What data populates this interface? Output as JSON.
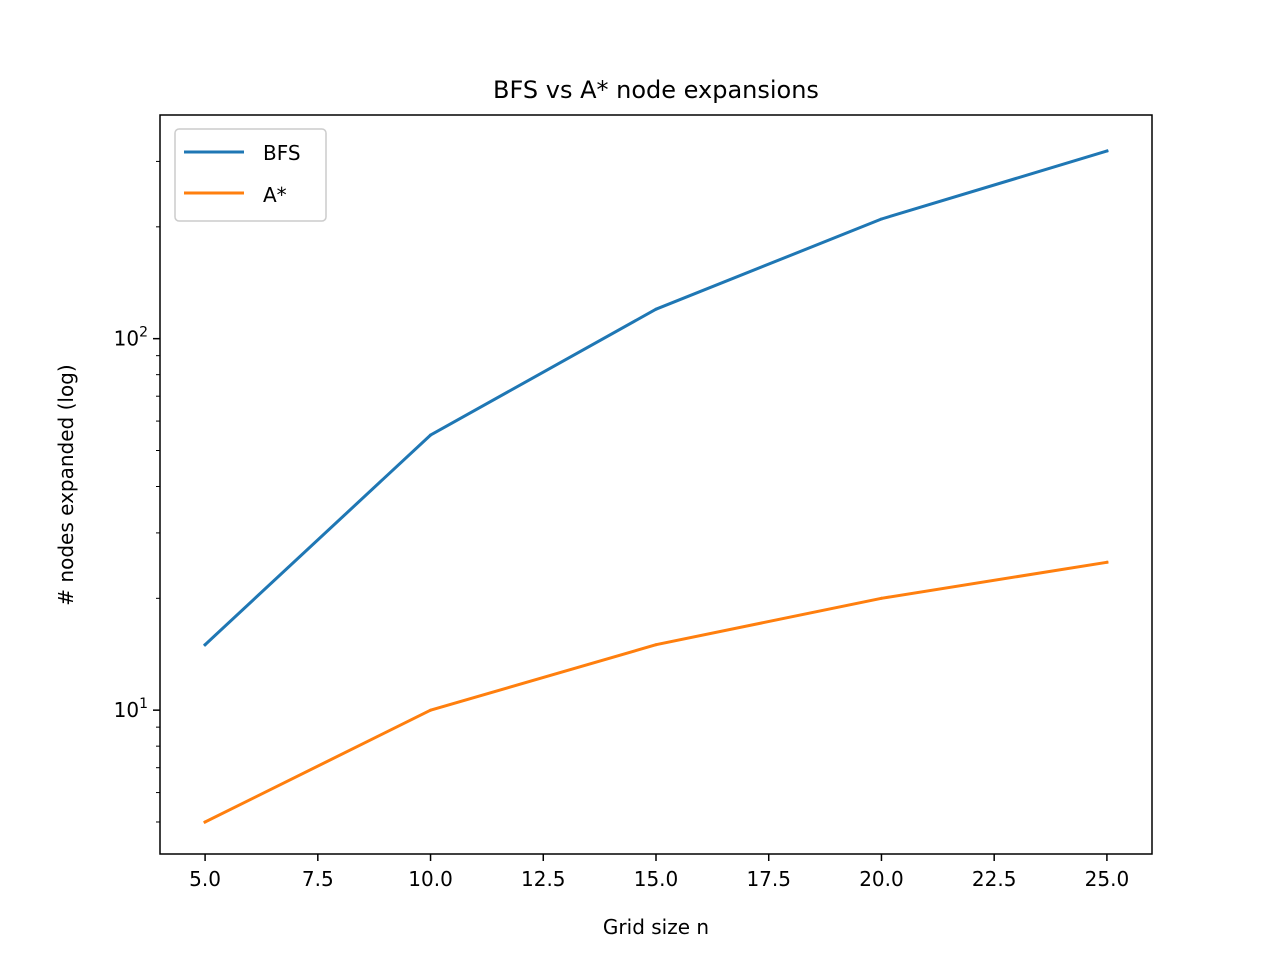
{
  "chart_data": {
    "type": "line",
    "title": "BFS vs A* node expansions",
    "xlabel": "Grid size n",
    "ylabel": "# nodes expanded (log)",
    "x": [
      5,
      10,
      15,
      20,
      25
    ],
    "series": [
      {
        "name": "BFS",
        "values": [
          15,
          55,
          120,
          210,
          320
        ],
        "color": "#1f77b4"
      },
      {
        "name": "A*",
        "values": [
          5,
          10,
          15,
          20,
          25
        ],
        "color": "#ff7f0e"
      }
    ],
    "xlim": [
      4,
      26
    ],
    "ylim": [
      4.1,
      400
    ],
    "yscale": "log",
    "xticks": [
      "5.0",
      "7.5",
      "10.0",
      "12.5",
      "15.0",
      "17.5",
      "20.0",
      "22.5",
      "25.0"
    ],
    "yticks": [
      {
        "base": "10",
        "exp": "1",
        "value": 10
      },
      {
        "base": "10",
        "exp": "2",
        "value": 100
      }
    ],
    "grid": false,
    "legend_position": "top-left"
  }
}
